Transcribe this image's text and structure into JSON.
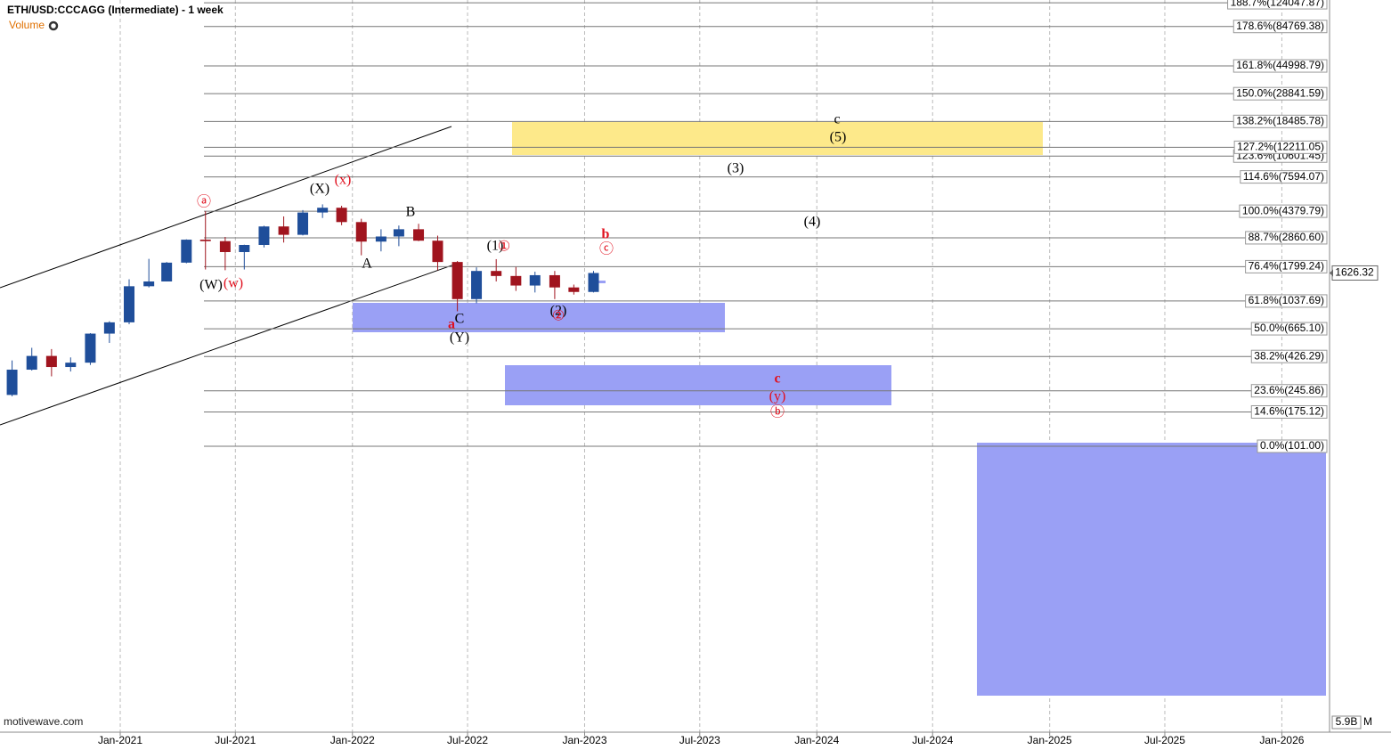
{
  "chart_data": {
    "type": "candlestick",
    "title": "ETH/USD:CCCAGG (Intermediate) - 1 week",
    "volume_title": "Volume",
    "watermark": "motivewave.com",
    "log_scale": true,
    "up_color": "#1f4e9a",
    "down_color": "#a0141e",
    "x": [
      "2020-07",
      "2020-08",
      "2020-09",
      "2020-10",
      "2020-11",
      "2020-12",
      "2021-01",
      "2021-02",
      "2021-03",
      "2021-04",
      "2021-05",
      "2021-06",
      "2021-07",
      "2021-08",
      "2021-09",
      "2021-10",
      "2021-11",
      "2021-12",
      "2022-01",
      "2022-02",
      "2022-03",
      "2022-04",
      "2022-05",
      "2022-06",
      "2022-07",
      "2022-08",
      "2022-09",
      "2022-10",
      "2022-11",
      "2022-12",
      "2023-01"
    ],
    "open": [
      230,
      345,
      430,
      360,
      386,
      615,
      737,
      1315,
      1420,
      1920,
      2775,
      2710,
      2275,
      2550,
      3430,
      3000,
      4290,
      4630,
      3680,
      2690,
      2920,
      3280,
      2730,
      1940,
      1070,
      1680,
      1550,
      1330,
      1570,
      1290,
      1200
    ],
    "high": [
      400,
      490,
      480,
      420,
      620,
      750,
      1470,
      2040,
      1940,
      2790,
      4380,
      2900,
      2560,
      3470,
      4030,
      4460,
      4890,
      4780,
      3880,
      3280,
      3480,
      3580,
      2960,
      1970,
      1780,
      2030,
      1790,
      1660,
      1680,
      1350,
      1680
    ],
    "low": [
      225,
      340,
      310,
      335,
      372,
      530,
      715,
      1290,
      1420,
      1900,
      1720,
      1700,
      1720,
      2450,
      2650,
      2970,
      3930,
      3500,
      2160,
      2300,
      2500,
      2710,
      1700,
      880,
      1000,
      1420,
      1220,
      1190,
      1070,
      1150,
      1190
    ],
    "close": [
      345,
      430,
      360,
      386,
      615,
      737,
      1315,
      1420,
      1920,
      2775,
      2710,
      2275,
      2550,
      3430,
      3000,
      4290,
      4630,
      3680,
      2690,
      2920,
      3280,
      2730,
      1940,
      1070,
      1680,
      1550,
      1330,
      1570,
      1290,
      1200,
      1626
    ],
    "xlim": [
      "2020-06-26",
      "2026-03-17"
    ],
    "ylim": [
      1.03,
      129600
    ],
    "xticks": [
      {
        "value": "2021-01-01",
        "label": "Jan-2021"
      },
      {
        "value": "2021-07-01",
        "label": "Jul-2021"
      },
      {
        "value": "2022-01-01",
        "label": "Jan-2022"
      },
      {
        "value": "2022-07-01",
        "label": "Jul-2022"
      },
      {
        "value": "2023-01-01",
        "label": "Jan-2023"
      },
      {
        "value": "2023-07-01",
        "label": "Jul-2023"
      },
      {
        "value": "2024-01-01",
        "label": "Jan-2024"
      },
      {
        "value": "2024-07-01",
        "label": "Jul-2024"
      },
      {
        "value": "2025-01-01",
        "label": "Jan-2025"
      },
      {
        "value": "2025-07-01",
        "label": "Jul-2025"
      },
      {
        "value": "2026-01-01",
        "label": "Jan-2026"
      }
    ],
    "levels": [
      {
        "value": 124047.87,
        "label": "188.7%(124047.87)"
      },
      {
        "value": 84769.38,
        "label": "178.6%(84769.38)"
      },
      {
        "value": 44998.79,
        "label": "161.8%(44998.79)"
      },
      {
        "value": 28841.59,
        "label": "150.0%(28841.59)"
      },
      {
        "value": 18485.78,
        "label": "138.2%(18485.78)"
      },
      {
        "value": 10601.45,
        "label": "123.6%(10601.45)"
      },
      {
        "value": 12211.05,
        "label": "127.2%(12211.05)"
      },
      {
        "value": 7594.07,
        "label": "114.6%(7594.07)"
      },
      {
        "value": 4379.79,
        "label": "100.0%(4379.79)"
      },
      {
        "value": 2860.6,
        "label": "88.7%(2860.60)"
      },
      {
        "value": 1799.24,
        "label": "76.4%(1799.24)"
      },
      {
        "value": 1037.69,
        "label": "61.8%(1037.69)"
      },
      {
        "value": 665.1,
        "label": "50.0%(665.10)"
      },
      {
        "value": 426.29,
        "label": "38.2%(426.29)"
      },
      {
        "value": 245.86,
        "label": "23.6%(245.86)"
      },
      {
        "value": 175.12,
        "label": "14.6%(175.12)"
      },
      {
        "value": 101.0,
        "label": "0.0%(101.00)"
      }
    ],
    "last_price": 1626.32,
    "volume_axis_label": "5.9B",
    "volume_axis_unit": "M",
    "annotations": [
      {
        "text": "ⓐ",
        "color": "#e0101e"
      },
      {
        "text": "(X)",
        "color": "#000"
      },
      {
        "text": "(x)",
        "color": "#e0101e"
      },
      {
        "text": "B",
        "color": "#000"
      },
      {
        "text": "A",
        "color": "#000"
      },
      {
        "text": "(W)",
        "color": "#000"
      },
      {
        "text": "(w)",
        "color": "#e0101e"
      },
      {
        "text": "C",
        "color": "#000"
      },
      {
        "text": "a",
        "color": "#e0101e"
      },
      {
        "text": "(Y)",
        "color": "#000"
      },
      {
        "text": "(1)",
        "color": "#000"
      },
      {
        "text": "①",
        "color": "#e0101e"
      },
      {
        "text": "(2)",
        "color": "#000"
      },
      {
        "text": "②",
        "color": "#e0101e"
      },
      {
        "text": "b",
        "color": "#e0101e"
      },
      {
        "text": "ⓒ",
        "color": "#e0101e"
      },
      {
        "text": "c",
        "color": "#000"
      },
      {
        "text": "(5)",
        "color": "#000"
      },
      {
        "text": "(3)",
        "color": "#000"
      },
      {
        "text": "(4)",
        "color": "#000"
      },
      {
        "text": "c",
        "color": "#e0101e"
      },
      {
        "text": "(y)",
        "color": "#e0101e"
      },
      {
        "text": "ⓑ",
        "color": "#e0101e"
      }
    ]
  }
}
